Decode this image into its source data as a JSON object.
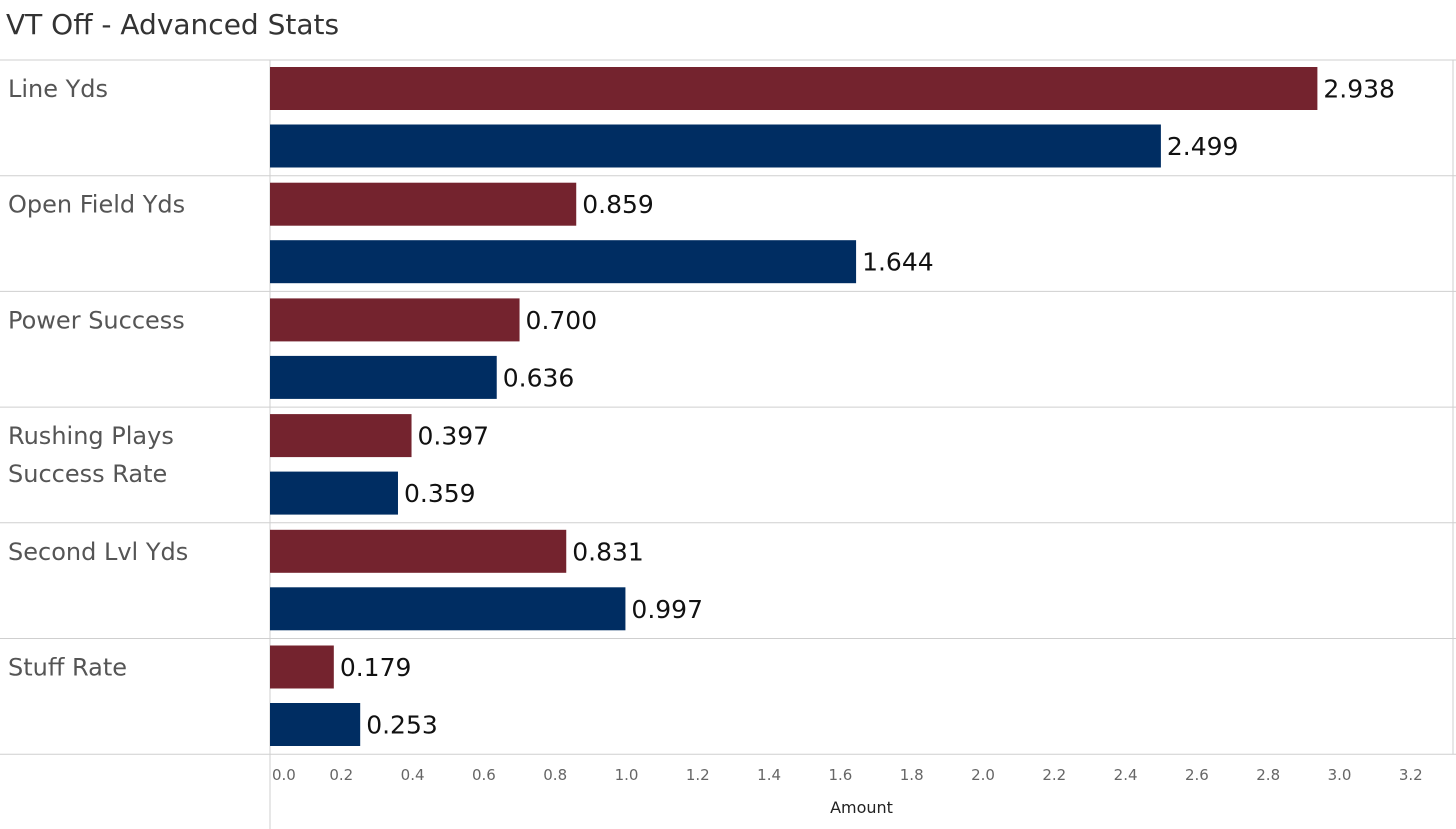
{
  "chart_data": {
    "type": "bar",
    "orientation": "horizontal",
    "title": "VT Off - Advanced Stats",
    "xlabel": "Amount",
    "ylabel": "",
    "xlim": [
      0,
      3.2
    ],
    "x_ticks": [
      "0.0",
      "0.2",
      "0.4",
      "0.6",
      "0.8",
      "1.0",
      "1.2",
      "1.4",
      "1.6",
      "1.8",
      "2.0",
      "2.2",
      "2.4",
      "2.6",
      "2.8",
      "3.0",
      "3.2"
    ],
    "categories": [
      {
        "lines": [
          "Line Yds"
        ]
      },
      {
        "lines": [
          "Open Field Yds"
        ]
      },
      {
        "lines": [
          "Power Success"
        ]
      },
      {
        "lines": [
          "Rushing Plays",
          "Success Rate"
        ]
      },
      {
        "lines": [
          "Second Lvl Yds"
        ]
      },
      {
        "lines": [
          "Stuff Rate"
        ]
      }
    ],
    "series": [
      {
        "color": "#74232E",
        "values": [
          2.938,
          0.859,
          0.7,
          0.397,
          0.831,
          0.179
        ],
        "labels": [
          "2.938",
          "0.859",
          "0.700",
          "0.397",
          "0.831",
          "0.179"
        ]
      },
      {
        "color": "#002D62",
        "values": [
          2.499,
          1.644,
          0.636,
          0.359,
          0.997,
          0.253
        ],
        "labels": [
          "2.499",
          "1.644",
          "0.636",
          "0.359",
          "0.997",
          "0.253"
        ]
      }
    ],
    "grid": false,
    "legend": "none"
  }
}
